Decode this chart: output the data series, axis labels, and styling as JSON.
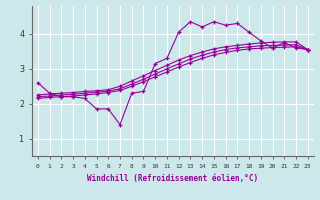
{
  "title": "",
  "xlabel": "Windchill (Refroidissement éolien,°C)",
  "ylabel": "",
  "background_color": "#cce8ea",
  "line_color": "#990099",
  "grid_color": "#ffffff",
  "xlim": [
    -0.5,
    23.5
  ],
  "ylim": [
    0.5,
    4.8
  ],
  "yticks": [
    1,
    2,
    3,
    4
  ],
  "xticks": [
    0,
    1,
    2,
    3,
    4,
    5,
    6,
    7,
    8,
    9,
    10,
    11,
    12,
    13,
    14,
    15,
    16,
    17,
    18,
    19,
    20,
    21,
    22,
    23
  ],
  "lines": [
    {
      "x": [
        0,
        1,
        2,
        3,
        4,
        5,
        6,
        7,
        8,
        9,
        10,
        11,
        12,
        13,
        14,
        15,
        16,
        17,
        18,
        19,
        20,
        21,
        22,
        23
      ],
      "y": [
        2.6,
        2.3,
        2.2,
        2.2,
        2.15,
        1.85,
        1.85,
        1.4,
        2.3,
        2.35,
        3.15,
        3.3,
        4.05,
        4.35,
        4.2,
        4.35,
        4.25,
        4.3,
        4.05,
        3.8,
        3.6,
        3.75,
        3.6,
        3.55
      ]
    },
    {
      "x": [
        0,
        1,
        2,
        3,
        4,
        5,
        6,
        7,
        8,
        9,
        10,
        11,
        12,
        13,
        14,
        15,
        16,
        17,
        18,
        19,
        20,
        21,
        22,
        23
      ],
      "y": [
        2.25,
        2.28,
        2.3,
        2.32,
        2.35,
        2.37,
        2.4,
        2.5,
        2.65,
        2.8,
        2.95,
        3.1,
        3.25,
        3.38,
        3.48,
        3.57,
        3.63,
        3.67,
        3.71,
        3.74,
        3.76,
        3.77,
        3.77,
        3.55
      ]
    },
    {
      "x": [
        0,
        1,
        2,
        3,
        4,
        5,
        6,
        7,
        8,
        9,
        10,
        11,
        12,
        13,
        14,
        15,
        16,
        17,
        18,
        19,
        20,
        21,
        22,
        23
      ],
      "y": [
        2.2,
        2.22,
        2.25,
        2.27,
        2.3,
        2.33,
        2.36,
        2.43,
        2.56,
        2.7,
        2.85,
        3.0,
        3.14,
        3.28,
        3.39,
        3.48,
        3.55,
        3.6,
        3.63,
        3.66,
        3.67,
        3.68,
        3.69,
        3.55
      ]
    },
    {
      "x": [
        0,
        1,
        2,
        3,
        4,
        5,
        6,
        7,
        8,
        9,
        10,
        11,
        12,
        13,
        14,
        15,
        16,
        17,
        18,
        19,
        20,
        21,
        22,
        23
      ],
      "y": [
        2.15,
        2.18,
        2.2,
        2.22,
        2.25,
        2.28,
        2.32,
        2.38,
        2.5,
        2.63,
        2.77,
        2.91,
        3.05,
        3.18,
        3.3,
        3.4,
        3.47,
        3.53,
        3.57,
        3.59,
        3.61,
        3.62,
        3.63,
        3.55
      ]
    }
  ]
}
